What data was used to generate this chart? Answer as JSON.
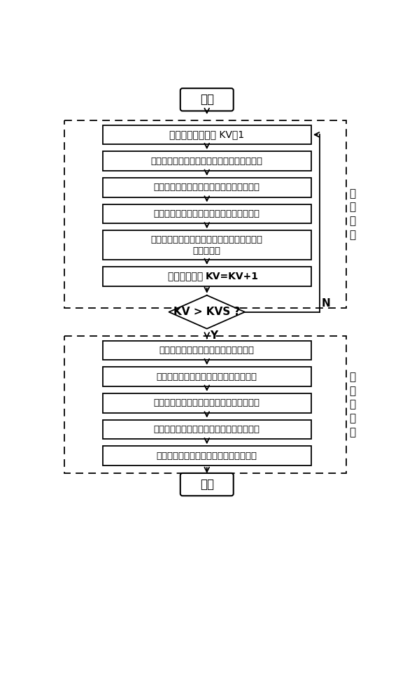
{
  "bg_color": "#ffffff",
  "box_color": "#ffffff",
  "box_edge": "#000000",
  "arrow_color": "#000000",
  "text_color": "#000000",
  "start_end_text": [
    "开始",
    "结束"
  ],
  "section1_label": "母\n线\n分\n析",
  "section2_label": "电\n气\n岛\n分\n析",
  "boxes_top": [
    "设置当前电压等级 KV＝1",
    "根据各节点所连闭合开关数进行节点优化编号",
    "形成反映节点通过开关连接关系的邻接矩阵",
    "调用邻接矩阵准平方法模块，生成连通矩阵",
    "行扫描法分析连通矩阵，得到当前电压等级内\n的所有母线",
    "当前电压等级 KV＝KV+1"
  ],
  "diamond_text": "KV > KVS ?",
  "diamond_N": "N",
  "diamond_Y": "Y",
  "boxes_bottom": [
    "根据支路两端节点形成母线支路关联表",
    "根据各母线所连支路数进行母线优化编号",
    "形成反映母线通过支路连接关系的邻接矩阵",
    "调用邻接矩阵准平方法模块，生成连通矩阵",
    "行扫描法分析连通矩阵，得到所有电气岛"
  ]
}
